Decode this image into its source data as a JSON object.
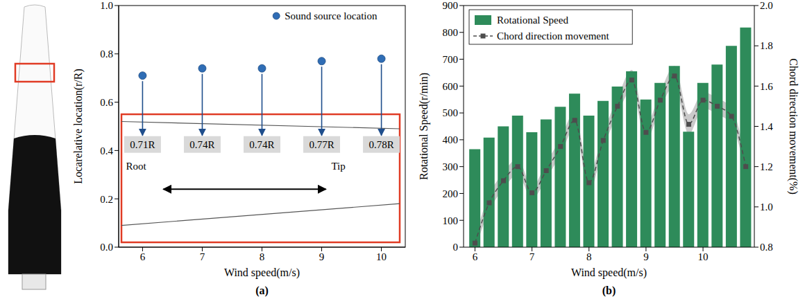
{
  "chart_data": [
    {
      "type": "scatter",
      "title": "(a)",
      "x_label": "Wind speed(m/s)",
      "y_label": "Locarelative location(r/R)",
      "x": [
        6,
        7,
        8,
        9,
        10
      ],
      "series": [
        {
          "name": "Sound source location",
          "color": "#2f6db5",
          "marker": "circle",
          "values": [
            0.71,
            0.74,
            0.74,
            0.77,
            0.78
          ],
          "value_labels": [
            "0.71R",
            "0.74R",
            "0.74R",
            "0.77R",
            "0.78R"
          ]
        }
      ],
      "annotations": [
        "Root",
        "Tip"
      ],
      "xlim": [
        5.6,
        10.4
      ],
      "xticks": [
        6,
        7,
        8,
        9,
        10
      ],
      "ylim": [
        0,
        1
      ],
      "yticks": [
        {
          "value": 0,
          "label": "0.0"
        },
        0.2,
        0.4,
        0.6,
        0.8,
        {
          "value": 1,
          "label": "1.0"
        }
      ],
      "grid": false,
      "legend": "upper right"
    },
    {
      "type": "bar",
      "title": "(b)",
      "x_label": "Wind speed(m/s)",
      "y_label": "Rotational Speed(r/min)",
      "y2_label": "Chord direction movement(%)",
      "x": [
        6,
        6.25,
        6.5,
        6.75,
        7,
        7.25,
        7.5,
        7.75,
        8,
        8.25,
        8.5,
        8.75,
        9,
        9.25,
        9.5,
        9.75,
        10,
        10.25,
        10.5,
        10.75
      ],
      "series": [
        {
          "name": "Rotational Speed",
          "type": "bar",
          "color": "#2e8b5a",
          "values": [
            365,
            408,
            450,
            490,
            428,
            476,
            523,
            572,
            490,
            545,
            598,
            655,
            550,
            612,
            675,
            430,
            612,
            680,
            750,
            818
          ]
        },
        {
          "name": "Chord direction movement",
          "type": "line",
          "axis": "y2",
          "color": "#4d4d4d",
          "marker": "square",
          "line_style": "dashed",
          "values": [
            0.82,
            1.02,
            1.13,
            1.2,
            1.07,
            1.18,
            1.3,
            1.43,
            1.12,
            1.33,
            1.5,
            1.63,
            1.37,
            1.53,
            1.65,
            1.41,
            1.53,
            1.5,
            1.45,
            1.2
          ],
          "errors": [
            0.03,
            0.04,
            0.04,
            0.04,
            0.03,
            0.04,
            0.04,
            0.04,
            0.04,
            0.04,
            0.04,
            0.05,
            0.04,
            0.04,
            0.05,
            0.05,
            0.04,
            0.04,
            0.04,
            0.04
          ]
        }
      ],
      "xlim": [
        5.8,
        10.9
      ],
      "xticks": [
        6,
        7,
        8,
        9,
        10
      ],
      "ylim": [
        0,
        900
      ],
      "yticks": [
        0,
        100,
        200,
        300,
        400,
        500,
        600,
        700,
        800,
        900
      ],
      "y2lim": [
        0.8,
        2
      ],
      "y2ticks": [
        0.8,
        {
          "value": 1,
          "label": "1.0"
        },
        1.2,
        1.4,
        1.6,
        1.8,
        {
          "value": 2,
          "label": "2.0"
        }
      ],
      "grid": false,
      "legend": "upper left"
    }
  ]
}
